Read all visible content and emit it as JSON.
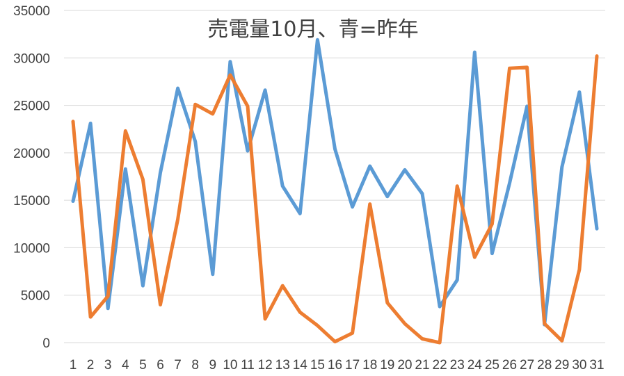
{
  "chart_data": {
    "type": "line",
    "title": "売電量10月、青=昨年",
    "xlabel": "",
    "ylabel": "",
    "ylim": [
      0,
      35000
    ],
    "yticks": [
      0,
      5000,
      10000,
      15000,
      20000,
      25000,
      30000,
      35000
    ],
    "grid": true,
    "legend": "none",
    "categories": [
      "1",
      "2",
      "3",
      "4",
      "5",
      "6",
      "7",
      "8",
      "9",
      "10",
      "11",
      "12",
      "13",
      "14",
      "15",
      "16",
      "17",
      "18",
      "19",
      "20",
      "21",
      "22",
      "23",
      "24",
      "25",
      "26",
      "27",
      "28",
      "29",
      "30",
      "31"
    ],
    "series": [
      {
        "color": "#5b9bd5",
        "values": [
          14900,
          23100,
          3600,
          18300,
          6000,
          17900,
          26800,
          21200,
          7200,
          29600,
          20200,
          26600,
          16500,
          13600,
          31900,
          20400,
          14300,
          18600,
          15400,
          18200,
          15700,
          3800,
          6600,
          30600,
          9400,
          16800,
          24900,
          1900,
          18500,
          26400,
          12000
        ]
      },
      {
        "color": "#ed7d31",
        "values": [
          23300,
          2700,
          4900,
          22300,
          17200,
          4000,
          13000,
          25100,
          24100,
          28200,
          24900,
          2500,
          6000,
          3200,
          1800,
          100,
          1000,
          14600,
          4200,
          2000,
          400,
          0,
          16500,
          9000,
          12500,
          28900,
          29000,
          2000,
          200,
          7700,
          30200
        ]
      }
    ]
  }
}
